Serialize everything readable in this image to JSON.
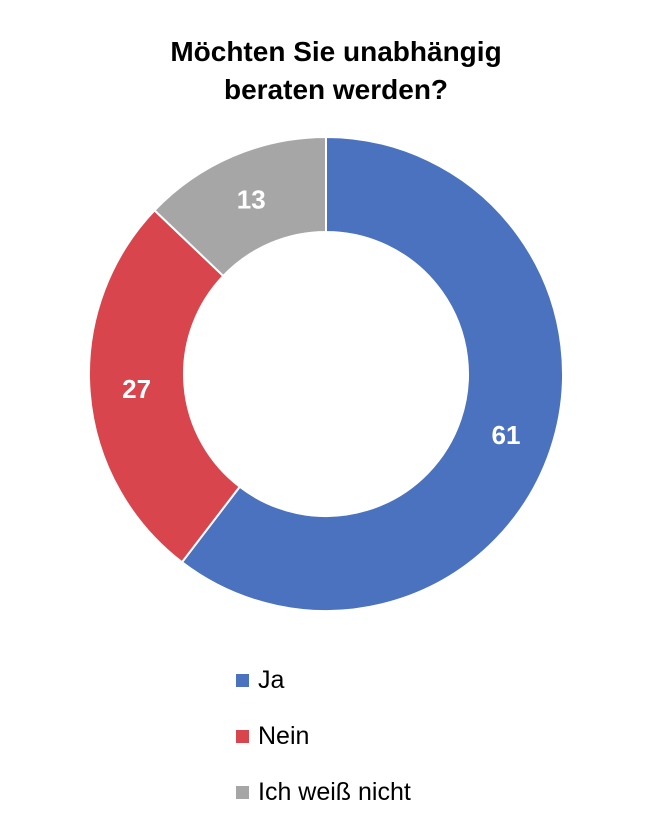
{
  "chart_data": {
    "type": "pie",
    "variant": "donut",
    "title_lines": [
      "Möchten Sie unabhängig",
      "beraten werden?"
    ],
    "categories": [
      "Ja",
      "Nein",
      "Ich weiß nicht"
    ],
    "values": [
      61,
      27,
      13
    ],
    "value_labels": [
      "61",
      "27",
      "13"
    ],
    "colors": [
      "#4a72bf",
      "#d9454c",
      "#a6a6a6"
    ],
    "start": "12 o'clock",
    "direction": "clockwise",
    "legend_position": "bottom"
  }
}
